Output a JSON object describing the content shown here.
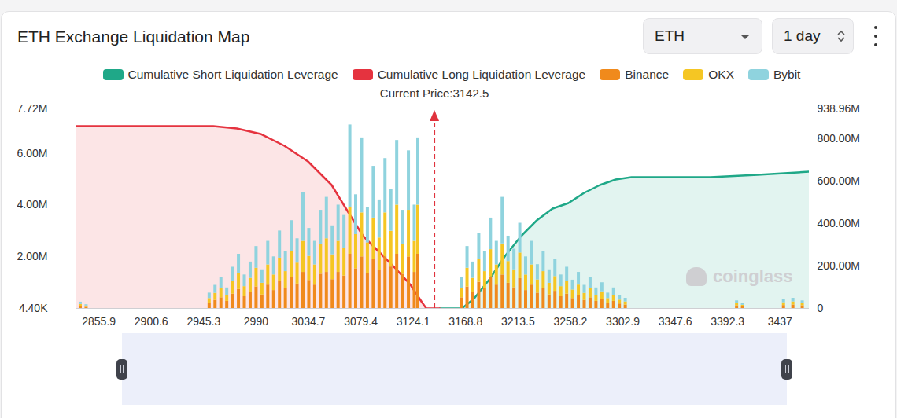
{
  "chart_data": {
    "type": "bar",
    "title": "ETH Exchange Liquidation Map",
    "controls": [
      "ETH",
      "1 day"
    ],
    "watermark": "coinglass",
    "current_price": {
      "value": 3142.5,
      "label": "Current Price:3142.5"
    },
    "legend": "top",
    "grid": false,
    "stacked": true,
    "xlim": [
      2837,
      3462
    ],
    "xticks": [
      2855.9,
      2900.6,
      2945.3,
      2990,
      3034.7,
      3079.4,
      3124.1,
      3168.8,
      3213.5,
      3258.2,
      3302.9,
      3347.6,
      3392.3,
      3437
    ],
    "ylim": [
      4400,
      7720000
    ],
    "yticks": [
      {
        "value": 4400,
        "label": "4.40K"
      },
      {
        "value": 2000000,
        "label": "2.00M"
      },
      {
        "value": 4000000,
        "label": "4.00M"
      },
      {
        "value": 6000000,
        "label": "6.00M"
      },
      {
        "value": 7720000,
        "label": "7.72M"
      }
    ],
    "y2lim": [
      0,
      938960000
    ],
    "y2ticks": [
      0,
      {
        "value": 200000000,
        "label": "200.00M"
      },
      {
        "value": 400000000,
        "label": "400.00M"
      },
      {
        "value": 600000000,
        "label": "600.00M"
      },
      {
        "value": 800000000,
        "label": "800.00M"
      },
      {
        "value": 938960000,
        "label": "938.96M"
      }
    ],
    "x": [
      2840,
      2845,
      2950,
      2955,
      2960,
      2965,
      2970,
      2975,
      2980,
      2985,
      2990,
      2995,
      3000,
      3005,
      3010,
      3015,
      3020,
      3025,
      3030,
      3035,
      3040,
      3045,
      3050,
      3055,
      3060,
      3065,
      3070,
      3075,
      3080,
      3085,
      3090,
      3095,
      3100,
      3105,
      3110,
      3115,
      3120,
      3125,
      3128,
      3165,
      3170,
      3175,
      3180,
      3185,
      3190,
      3195,
      3200,
      3205,
      3210,
      3215,
      3220,
      3225,
      3230,
      3235,
      3240,
      3245,
      3250,
      3255,
      3260,
      3265,
      3270,
      3275,
      3280,
      3285,
      3290,
      3295,
      3300,
      3305,
      3400,
      3405,
      3440,
      3448,
      3456
    ],
    "series": [
      {
        "name": "Cumulative Short Liquidation Leverage",
        "type": "area",
        "axis": "y2",
        "color": "#1fa888",
        "x": [
          3146.7,
          3165.6,
          3175.7,
          3189.1,
          3202.6,
          3216.1,
          3229.5,
          3243,
          3256.5,
          3269.9,
          3283.4,
          3296.8,
          3310.3,
          3377.6,
          3418,
          3462
        ],
        "values": [
          0,
          0,
          44400000,
          136800000,
          247700000,
          340100000,
          414000000,
          469500000,
          495400000,
          543400000,
          580400000,
          606300000,
          617300000,
          617300000,
          628400000,
          643200000
        ]
      },
      {
        "name": "Cumulative Long Liquidation Leverage",
        "type": "area",
        "axis": "y2",
        "color": "#e5333f",
        "x": [
          2837,
          2953.5,
          2973.7,
          2993.9,
          3014.1,
          3034.3,
          3054.5,
          3068,
          3081.4,
          3094.9,
          3108.3,
          3121.8,
          3131.9,
          3135.3,
          3146.7
        ],
        "values": [
          857600000,
          857600000,
          846500000,
          820700000,
          765200000,
          691300000,
          580400000,
          458400000,
          340100000,
          266200000,
          192200000,
          110900000,
          25900000,
          0,
          0
        ]
      },
      {
        "name": "Binance",
        "type": "bar",
        "color": "#f08a1c",
        "values": [
          90000,
          50000,
          210000,
          320000,
          420000,
          280000,
          560000,
          740000,
          460000,
          630000,
          840000,
          530000,
          910000,
          700000,
          1050000,
          770000,
          1190000,
          950000,
          1400000,
          1090000,
          910000,
          1330000,
          1400000,
          1120000,
          1400000,
          1260000,
          2100000,
          1540000,
          2000000,
          1370000,
          1900000,
          1470000,
          2000000,
          1610000,
          2100000,
          1330000,
          2000000,
          1400000,
          2100000,
          420000,
          840000,
          630000,
          1020000,
          770000,
          1230000,
          910000,
          1300000,
          980000,
          810000,
          1160000,
          700000,
          910000,
          600000,
          770000,
          530000,
          670000,
          460000,
          560000,
          390000,
          490000,
          320000,
          420000,
          280000,
          350000,
          210000,
          280000,
          180000,
          140000,
          110000,
          70000,
          120000,
          140000,
          110000
        ]
      },
      {
        "name": "OKX",
        "type": "bar",
        "color": "#f5c623",
        "values": [
          70000,
          50000,
          180000,
          270000,
          360000,
          240000,
          480000,
          630000,
          390000,
          540000,
          720000,
          450000,
          780000,
          600000,
          900000,
          660000,
          1020000,
          810000,
          1200000,
          930000,
          780000,
          1140000,
          1300000,
          960000,
          1200000,
          1080000,
          1800000,
          1320000,
          1700000,
          1170000,
          1600000,
          1260000,
          1700000,
          1380000,
          1900000,
          1140000,
          1800000,
          1200000,
          1900000,
          360000,
          720000,
          540000,
          870000,
          660000,
          1050000,
          780000,
          1200000,
          840000,
          690000,
          990000,
          600000,
          780000,
          510000,
          660000,
          450000,
          570000,
          390000,
          480000,
          330000,
          420000,
          270000,
          360000,
          240000,
          300000,
          180000,
          240000,
          150000,
          120000,
          90000,
          60000,
          110000,
          120000,
          90000
        ]
      },
      {
        "name": "Bybit",
        "type": "bar",
        "color": "#8fd3de",
        "values": [
          90000,
          50000,
          210000,
          310000,
          420000,
          280000,
          560000,
          730000,
          450000,
          630000,
          840000,
          520000,
          910000,
          700000,
          1050000,
          770000,
          1190000,
          940000,
          1900000,
          1080000,
          910000,
          1330000,
          1600000,
          1120000,
          1400000,
          1260000,
          3200000,
          1540000,
          2900000,
          1360000,
          2000000,
          1470000,
          2100000,
          1610000,
          2500000,
          1330000,
          2300000,
          1400000,
          2600000,
          420000,
          840000,
          630000,
          1010000,
          770000,
          1220000,
          910000,
          1800000,
          980000,
          800000,
          1150000,
          700000,
          910000,
          590000,
          770000,
          520000,
          660000,
          450000,
          560000,
          380000,
          490000,
          310000,
          420000,
          280000,
          350000,
          210000,
          280000,
          170000,
          140000,
          100000,
          70000,
          120000,
          140000,
          100000
        ]
      }
    ]
  }
}
